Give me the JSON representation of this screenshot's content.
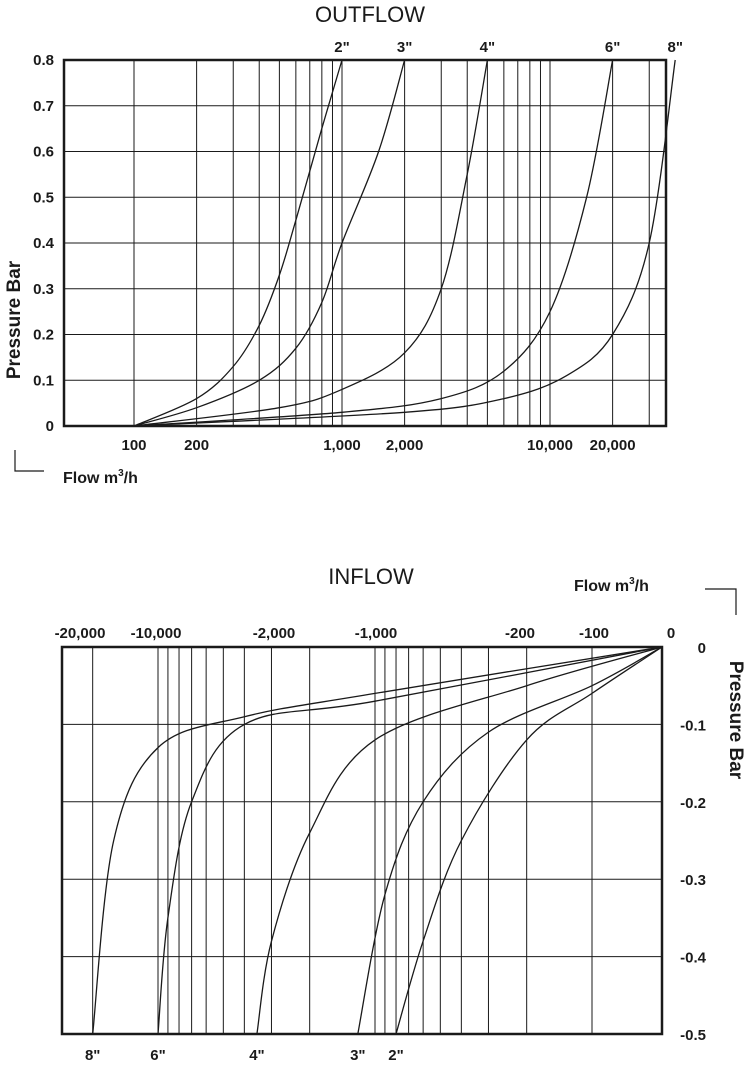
{
  "chart_data": [
    {
      "type": "line",
      "title": "OUTFLOW",
      "xlabel": "Flow m3/h",
      "xlabel_main": "Flow  m",
      "xlabel_sup": "3",
      "xlabel_tail": "/h",
      "ylabel": "Pressure Bar",
      "x_scale": "log",
      "ylim": [
        0,
        0.8
      ],
      "y_ticks": [
        0,
        0.1,
        0.2,
        0.3,
        0.4,
        0.5,
        0.6,
        0.7,
        0.8
      ],
      "y_tick_labels": [
        "0",
        "0.1",
        "0.2",
        "0.3",
        "0.4",
        "0.5",
        "0.6",
        "0.7",
        "0.8"
      ],
      "x_tick_labels": [
        {
          "text": "100",
          "value": 100
        },
        {
          "text": "200",
          "value": 200
        },
        {
          "text": "1,000",
          "value": 1000
        },
        {
          "text": "2,000",
          "value": 2000
        },
        {
          "text": "10,000",
          "value": 10000
        },
        {
          "text": "20,000",
          "value": 20000
        }
      ],
      "grid": true,
      "series": [
        {
          "name": "2\"",
          "x": [
            100,
            200,
            300,
            400,
            500,
            600,
            800,
            1000
          ],
          "y": [
            0,
            0.06,
            0.13,
            0.22,
            0.33,
            0.45,
            0.65,
            0.8
          ]
        },
        {
          "name": "3\"",
          "x": [
            100,
            200,
            400,
            600,
            800,
            1000,
            1500,
            2000
          ],
          "y": [
            0,
            0.04,
            0.1,
            0.17,
            0.27,
            0.4,
            0.6,
            0.8
          ]
        },
        {
          "name": "4\"",
          "x": [
            100,
            500,
            1000,
            2000,
            3000,
            4000,
            5000
          ],
          "y": [
            0,
            0.04,
            0.08,
            0.16,
            0.3,
            0.55,
            0.8
          ]
        },
        {
          "name": "6\"",
          "x": [
            100,
            1000,
            3000,
            6000,
            10000,
            15000,
            20000
          ],
          "y": [
            0,
            0.03,
            0.06,
            0.12,
            0.25,
            0.5,
            0.8
          ]
        },
        {
          "name": "8\"",
          "x": [
            100,
            2000,
            6000,
            12000,
            20000,
            30000,
            40000
          ],
          "y": [
            0,
            0.03,
            0.06,
            0.11,
            0.2,
            0.4,
            0.8
          ]
        }
      ]
    },
    {
      "type": "line",
      "title": "INFLOW",
      "xlabel": "Flow m3/h",
      "xlabel_main": "Flow  m",
      "xlabel_sup": "3",
      "xlabel_tail": "/h",
      "ylabel": "Pressure Bar",
      "x_scale": "log",
      "ylim": [
        -0.5,
        0
      ],
      "y_ticks": [
        0,
        -0.1,
        -0.2,
        -0.3,
        -0.4,
        -0.5
      ],
      "y_tick_labels": [
        "0",
        "-0.1",
        "-0.2",
        "-0.3",
        "-0.4",
        "-0.5"
      ],
      "x_tick_labels": [
        {
          "text": "-20,000",
          "value": -20000
        },
        {
          "text": "-10,000",
          "value": -10000
        },
        {
          "text": "-2,000",
          "value": -2000
        },
        {
          "text": "-1,000",
          "value": -1000
        },
        {
          "text": "-200",
          "value": -200
        },
        {
          "text": "-100",
          "value": -100
        },
        {
          "text": "0",
          "value": 0
        }
      ],
      "grid": true,
      "series": [
        {
          "name": "2\"",
          "x": [
            0,
            -100,
            -200,
            -400,
            -600,
            -800
          ],
          "y": [
            0,
            -0.06,
            -0.12,
            -0.25,
            -0.38,
            -0.5
          ]
        },
        {
          "name": "3\"",
          "x": [
            0,
            -100,
            -300,
            -600,
            -900,
            -1200
          ],
          "y": [
            0,
            -0.05,
            -0.11,
            -0.2,
            -0.32,
            -0.5
          ]
        },
        {
          "name": "4\"",
          "x": [
            0,
            -200,
            -1000,
            -2000,
            -3000,
            -3500
          ],
          "y": [
            0,
            -0.05,
            -0.12,
            -0.24,
            -0.38,
            -0.5
          ]
        },
        {
          "name": "6\"",
          "x": [
            0,
            -1000,
            -4000,
            -7000,
            -9000,
            -10000
          ],
          "y": [
            0,
            -0.07,
            -0.1,
            -0.2,
            -0.35,
            -0.5
          ]
        },
        {
          "name": "8\"",
          "x": [
            0,
            -1000,
            -4000,
            -10000,
            -16000,
            -20000
          ],
          "y": [
            0,
            -0.06,
            -0.09,
            -0.13,
            -0.25,
            -0.5
          ]
        }
      ]
    }
  ]
}
